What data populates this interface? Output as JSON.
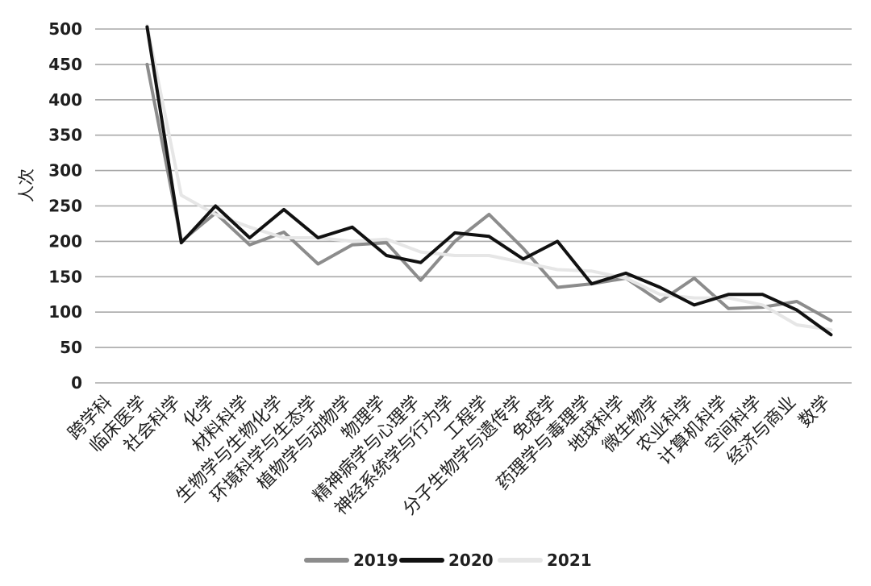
{
  "chart_data": {
    "type": "line",
    "title": "",
    "xlabel": "",
    "ylabel": "人次",
    "ylim": [
      0,
      500
    ],
    "yticks": [
      0,
      50,
      100,
      150,
      200,
      250,
      300,
      350,
      400,
      450,
      500
    ],
    "grid": true,
    "legend_position": "bottom",
    "categories": [
      "跨学科",
      "临床医学",
      "社会科学",
      "化学",
      "材料科学",
      "生物学与生物化学",
      "环境科学与生态学",
      "植物学与动物学",
      "物理学",
      "精神病学与心理学",
      "神经系统学与行为学",
      "工程学",
      "分子生物学与遗传学",
      "免疫学",
      "药理学与毒理学",
      "地球科学",
      "微生物学",
      "农业科学",
      "计算机科学",
      "空间科学",
      "经济与商业",
      "数学"
    ],
    "series": [
      {
        "name": "2019",
        "color": "#8c8c8c",
        "values": [
          null,
          450,
          200,
          240,
          195,
          213,
          168,
          195,
          198,
          145,
          200,
          238,
          190,
          135,
          140,
          148,
          115,
          148,
          105,
          107,
          115,
          88
        ]
      },
      {
        "name": "2020",
        "color": "#111111",
        "values": [
          null,
          503,
          198,
          250,
          205,
          245,
          205,
          220,
          180,
          170,
          212,
          207,
          175,
          200,
          140,
          155,
          135,
          110,
          125,
          125,
          103,
          68
        ]
      },
      {
        "name": "2021",
        "color": "#e6e6e6",
        "values": [
          null,
          505,
          265,
          238,
          220,
          205,
          205,
          200,
          203,
          185,
          180,
          180,
          170,
          160,
          158,
          148,
          125,
          120,
          120,
          110,
          82,
          75
        ]
      }
    ]
  }
}
